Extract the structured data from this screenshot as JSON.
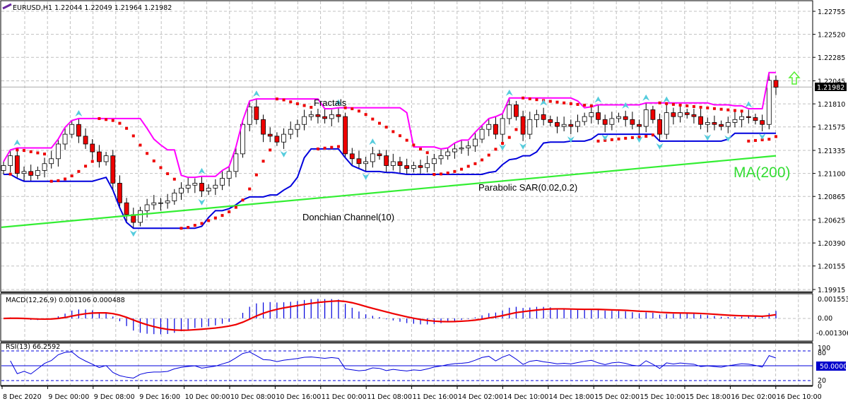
{
  "header": {
    "symbol_line": "EURUSD,H1  1.22044 1.22049 1.21964 1.21982"
  },
  "price_axis": {
    "ticks": [
      "1.22755",
      "1.22520",
      "1.22285",
      "1.22045",
      "1.21810",
      "1.21575",
      "1.21335",
      "1.21100",
      "1.20865",
      "1.20625",
      "1.20390",
      "1.20155",
      "1.19915"
    ],
    "current_price": "1.21982"
  },
  "time_axis": {
    "labels": [
      "8 Dec 2020",
      "9 Dec 00:00",
      "9 Dec 08:00",
      "9 Dec 16:00",
      "10 Dec 00:00",
      "10 Dec 08:00",
      "10 Dec 16:00",
      "11 Dec 00:00",
      "11 Dec 08:00",
      "11 Dec 16:00",
      "14 Dec 02:00",
      "14 Dec 10:00",
      "14 Dec 18:00",
      "15 Dec 02:00",
      "15 Dec 10:00",
      "15 Dec 18:00",
      "16 Dec 02:00",
      "16 Dec 10:00"
    ]
  },
  "annotations": {
    "fractals": "Fractals",
    "donchian": "Donchian Channel(10)",
    "psar": "Parabolic SAR(0.02,0.2)",
    "ma": "MA(200)"
  },
  "macd": {
    "label": "MACD(12,26,9) 0.001106 0.000488",
    "ticks": [
      "0.001553",
      "0.00",
      "-0.001306"
    ]
  },
  "rsi": {
    "label": "RSI(13) 66.2592",
    "ticks": [
      "100",
      "80",
      "20",
      "0"
    ],
    "level_badge": "50.0000"
  },
  "colors": {
    "bull_candle": "#ffffff",
    "bear_candle": "#ee0000",
    "donchian_upper": "#ff00ff",
    "donchian_lower": "#0000dd",
    "ma": "#33ee33",
    "psar": "#ee0000",
    "fractal": "#55ccdd",
    "macd_hist": "#0000dd",
    "macd_signal": "#ee0000",
    "rsi": "#0000dd",
    "grid": "#c0c0c0"
  },
  "chart_data": {
    "type": "candlestick",
    "title": "EURUSD,H1",
    "ohlc_last": {
      "open": 1.22044,
      "high": 1.22049,
      "low": 1.21964,
      "close": 1.21982
    },
    "ylim": [
      1.1985,
      1.2285
    ],
    "x_labels": [
      "8 Dec 2020",
      "9 Dec 00:00",
      "9 Dec 08:00",
      "9 Dec 16:00",
      "10 Dec 00:00",
      "10 Dec 08:00",
      "10 Dec 16:00",
      "11 Dec 00:00",
      "11 Dec 08:00",
      "11 Dec 16:00",
      "14 Dec 02:00",
      "14 Dec 10:00",
      "14 Dec 18:00",
      "15 Dec 02:00",
      "15 Dec 10:00",
      "15 Dec 18:00",
      "16 Dec 02:00",
      "16 Dec 10:00"
    ],
    "close": [
      1.2118,
      1.2128,
      1.211,
      1.2112,
      1.2108,
      1.2113,
      1.212,
      1.2125,
      1.214,
      1.215,
      1.216,
      1.2148,
      1.214,
      1.2132,
      1.2122,
      1.2128,
      1.21,
      1.208,
      1.2068,
      1.206,
      1.2072,
      1.2078,
      1.208,
      1.208,
      1.2082,
      1.209,
      1.2095,
      1.2098,
      1.21,
      1.2092,
      1.2095,
      1.2098,
      1.2105,
      1.2112,
      1.213,
      1.216,
      1.2178,
      1.2165,
      1.215,
      1.2148,
      1.2142,
      1.215,
      1.2155,
      1.216,
      1.2168,
      1.217,
      1.2168,
      1.2166,
      1.217,
      1.2168,
      1.213,
      1.2125,
      1.212,
      1.2122,
      1.213,
      1.2128,
      1.2118,
      1.2122,
      1.2118,
      1.2115,
      1.2118,
      1.2116,
      1.212,
      1.2125,
      1.2128,
      1.2132,
      1.2135,
      1.2136,
      1.2138,
      1.2145,
      1.2155,
      1.216,
      1.215,
      1.2166,
      1.218,
      1.2168,
      1.215,
      1.2165,
      1.217,
      1.2165,
      1.2162,
      1.2158,
      1.216,
      1.2158,
      1.2163,
      1.2168,
      1.2172,
      1.2165,
      1.216,
      1.2166,
      1.2168,
      1.2165,
      1.216,
      1.2158,
      1.2175,
      1.2165,
      1.215,
      1.2172,
      1.2168,
      1.2172,
      1.217,
      1.2168,
      1.216,
      1.2162,
      1.216,
      1.2158,
      1.2162,
      1.2165,
      1.2168,
      1.2167,
      1.2164,
      1.216,
      1.2205,
      1.2198
    ],
    "series": [
      {
        "name": "Donchian Channel(10) upper",
        "color": "#ff00ff"
      },
      {
        "name": "Donchian Channel(10) lower",
        "color": "#0000dd"
      },
      {
        "name": "MA(200)",
        "color": "#33ee33",
        "values_start_end": [
          1.2055,
          1.2128
        ]
      },
      {
        "name": "Parabolic SAR(0.02,0.2)",
        "color": "#ee0000"
      },
      {
        "name": "Fractals",
        "color": "#55ccdd"
      }
    ],
    "subcharts": [
      {
        "name": "MACD(12,26,9)",
        "main": 0.001106,
        "signal": 0.000488,
        "ylim": [
          -0.001306,
          0.001553
        ]
      },
      {
        "name": "RSI(13)",
        "value": 66.2592,
        "levels": [
          80,
          50,
          20
        ],
        "ylim": [
          0,
          100
        ]
      }
    ]
  }
}
